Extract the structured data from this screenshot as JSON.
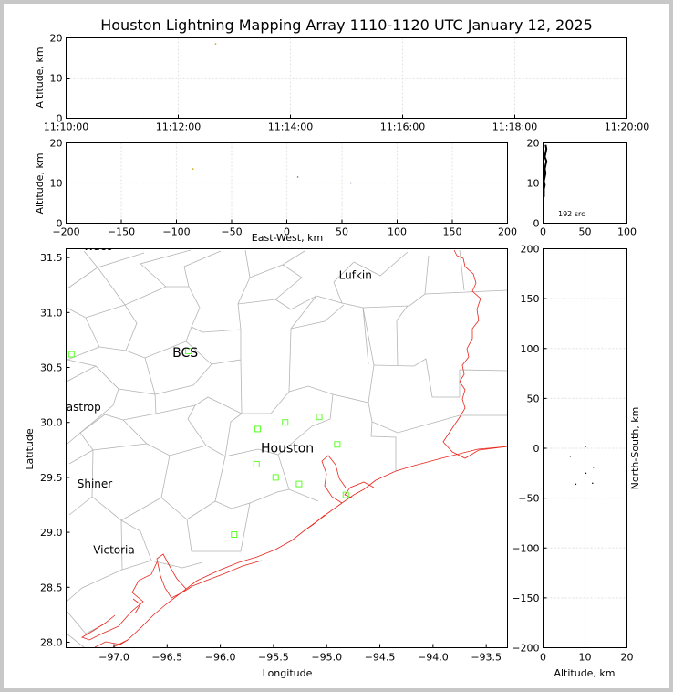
{
  "chart_data": [
    {
      "type": "scatter",
      "panel": "altitude-time",
      "title": "Houston Lightning Mapping Array 1110-1120 UTC January 12, 2025",
      "xlabel": "",
      "ylabel": "Altitude, km",
      "xlim": [
        "11:10:00",
        "11:20:00"
      ],
      "ylim": [
        0,
        20
      ],
      "x_ticks": [
        "11:10:00",
        "11:12:00",
        "11:14:00",
        "11:16:00",
        "11:18:00",
        "11:20:00"
      ],
      "y_ticks": [
        0,
        10,
        20
      ],
      "grid": true,
      "points": [
        {
          "x": "11:12:40",
          "y": 18.5
        }
      ]
    },
    {
      "type": "scatter",
      "panel": "altitude-east-west",
      "xlabel": "East-West, km",
      "ylabel": "Altitude, km",
      "xlim": [
        -200,
        200
      ],
      "ylim": [
        0,
        20
      ],
      "x_ticks": [
        -200,
        -150,
        -100,
        -50,
        0,
        50,
        100,
        150,
        200
      ],
      "y_ticks": [
        0,
        10,
        20
      ],
      "grid": true,
      "points": [
        {
          "x": -85,
          "y": 13.5
        },
        {
          "x": 10,
          "y": 11.5
        },
        {
          "x": 58,
          "y": 10
        }
      ]
    },
    {
      "type": "bar",
      "panel": "altitude-histogram",
      "xlabel": "",
      "ylabel": "",
      "annotation": "192 src",
      "xlim": [
        0,
        100
      ],
      "ylim": [
        0,
        20
      ],
      "x_ticks": [
        0,
        50,
        100
      ],
      "y_ticks": [
        0,
        10,
        20
      ],
      "orientation": "horizontal",
      "profile": [
        {
          "altitude": 19.5,
          "count": 3
        },
        {
          "altitude": 18.5,
          "count": 4
        },
        {
          "altitude": 17.5,
          "count": 3
        },
        {
          "altitude": 16.5,
          "count": 2
        },
        {
          "altitude": 15.5,
          "count": 4
        },
        {
          "altitude": 14.5,
          "count": 3
        },
        {
          "altitude": 13.5,
          "count": 2
        },
        {
          "altitude": 12.5,
          "count": 3
        },
        {
          "altitude": 11.5,
          "count": 2
        },
        {
          "altitude": 10.5,
          "count": 1
        },
        {
          "altitude": 9.5,
          "count": 2
        },
        {
          "altitude": 8.5,
          "count": 1
        },
        {
          "altitude": 7.5,
          "count": 1
        },
        {
          "altitude": 6.5,
          "count": 1
        }
      ]
    },
    {
      "type": "map",
      "panel": "plan-view",
      "xlabel": "Longitude",
      "ylabel": "Latitude",
      "xlim": [
        -97.45,
        -93.3
      ],
      "ylim": [
        27.95,
        31.58
      ],
      "x_ticks": [
        "−97.0",
        "−96.5",
        "−96.0",
        "−95.5",
        "−95.0",
        "−94.5",
        "−94.0",
        "−93.5"
      ],
      "y_ticks": [
        "28.0",
        "28.5",
        "29.0",
        "29.5",
        "30.0",
        "30.5",
        "31.0",
        "31.5"
      ],
      "cities": [
        {
          "name": "Lufkin",
          "lon": -94.73,
          "lat": 31.34,
          "color": "#000000"
        },
        {
          "name": "BCS",
          "lon": -96.33,
          "lat": 30.63,
          "color": "#6b1d1d"
        },
        {
          "name": "Bastrop",
          "lon": -97.32,
          "lat": 30.14,
          "color": "#000000"
        },
        {
          "name": "Houston",
          "lon": -95.37,
          "lat": 29.76,
          "color": "#ffa500"
        },
        {
          "name": "Shiner",
          "lon": -97.18,
          "lat": 29.44,
          "color": "#000000"
        },
        {
          "name": "Victoria",
          "lon": -97.0,
          "lat": 28.84,
          "color": "#000000"
        },
        {
          "name": "Waco",
          "lon": -97.15,
          "lat": 31.6,
          "color": "#000000"
        }
      ],
      "stations": [
        {
          "lon": -97.4,
          "lat": 30.62
        },
        {
          "lon": -96.3,
          "lat": 30.65
        },
        {
          "lon": -95.65,
          "lat": 29.94
        },
        {
          "lon": -95.39,
          "lat": 30.0
        },
        {
          "lon": -95.07,
          "lat": 30.05
        },
        {
          "lon": -95.66,
          "lat": 29.62
        },
        {
          "lon": -95.48,
          "lat": 29.5
        },
        {
          "lon": -95.26,
          "lat": 29.44
        },
        {
          "lon": -94.9,
          "lat": 29.8
        },
        {
          "lon": -94.82,
          "lat": 29.34
        },
        {
          "lon": -95.87,
          "lat": 28.98
        }
      ]
    },
    {
      "type": "scatter",
      "panel": "north-south-altitude",
      "xlabel": "Altitude, km",
      "ylabel": "North-South, km",
      "xlim": [
        0,
        20
      ],
      "ylim": [
        -200,
        200
      ],
      "x_ticks": [
        0,
        10,
        20
      ],
      "y_ticks": [
        -200,
        -150,
        -100,
        -50,
        0,
        50,
        100,
        150,
        200
      ],
      "grid": true,
      "points": [
        {
          "x": 6.5,
          "y": -8
        },
        {
          "x": 10.2,
          "y": 2
        },
        {
          "x": 10.2,
          "y": -25
        },
        {
          "x": 12,
          "y": -19
        },
        {
          "x": 7.8,
          "y": -36
        },
        {
          "x": 11.8,
          "y": -35
        }
      ]
    }
  ]
}
